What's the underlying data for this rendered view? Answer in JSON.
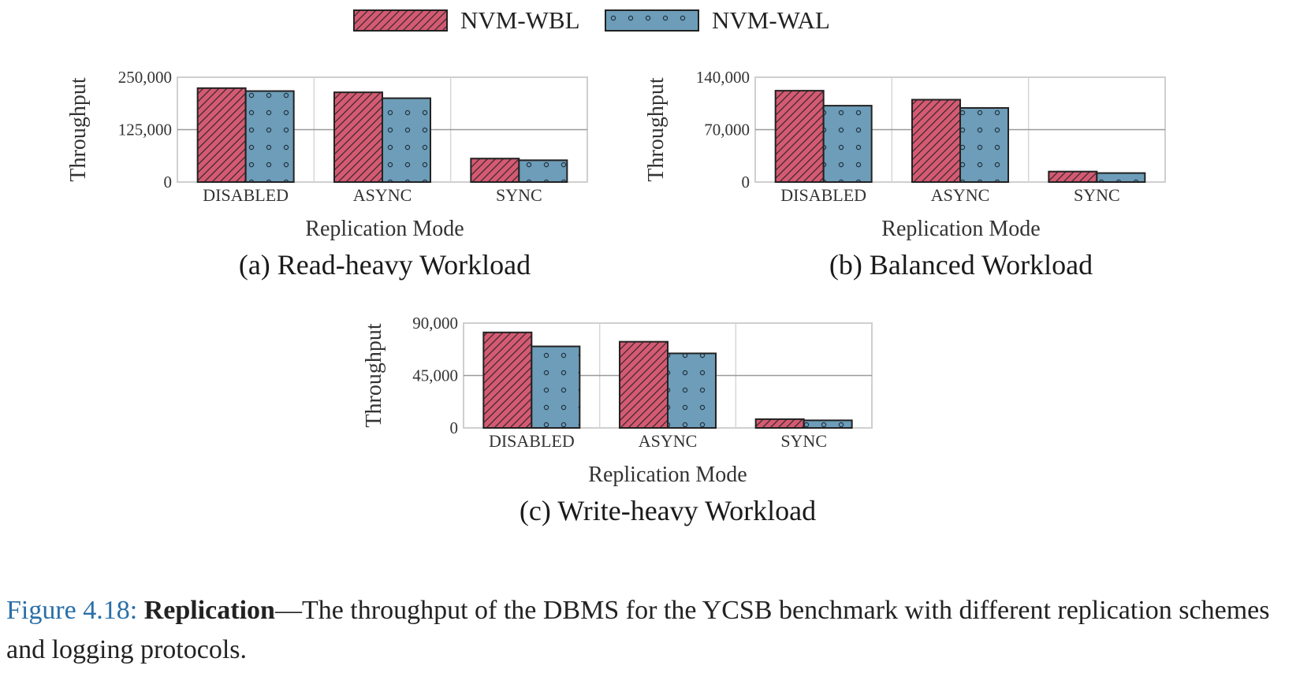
{
  "legend": [
    {
      "name": "NVM-WBL",
      "color": "#d45a72",
      "pattern": "hatch"
    },
    {
      "name": "NVM-WAL",
      "color": "#6d9db8",
      "pattern": "dots"
    }
  ],
  "chart_data": [
    {
      "type": "bar",
      "subtitle": "(a) Read-heavy Workload",
      "xlabel": "Replication Mode",
      "ylabel": "Throughput",
      "categories": [
        "DISABLED",
        "ASYNC",
        "SYNC"
      ],
      "yticks": [
        "0",
        "125,000",
        "250,000"
      ],
      "ytick_values": [
        0,
        125000,
        250000
      ],
      "ylim": [
        0,
        250000
      ],
      "grid": true,
      "series": [
        {
          "name": "NVM-WBL",
          "values": [
            224000,
            214000,
            56000
          ]
        },
        {
          "name": "NVM-WAL",
          "values": [
            217000,
            200000,
            52000
          ]
        }
      ]
    },
    {
      "type": "bar",
      "subtitle": "(b) Balanced Workload",
      "xlabel": "Replication Mode",
      "ylabel": "Throughput",
      "categories": [
        "DISABLED",
        "ASYNC",
        "SYNC"
      ],
      "yticks": [
        "0",
        "70,000",
        "140,000"
      ],
      "ytick_values": [
        0,
        70000,
        140000
      ],
      "ylim": [
        0,
        140000
      ],
      "grid": true,
      "series": [
        {
          "name": "NVM-WBL",
          "values": [
            122000,
            110000,
            14000
          ]
        },
        {
          "name": "NVM-WAL",
          "values": [
            102000,
            99000,
            12000
          ]
        }
      ]
    },
    {
      "type": "bar",
      "subtitle": "(c) Write-heavy Workload",
      "xlabel": "Replication Mode",
      "ylabel": "Throughput",
      "categories": [
        "DISABLED",
        "ASYNC",
        "SYNC"
      ],
      "yticks": [
        "0",
        "45,000",
        "90,000"
      ],
      "ytick_values": [
        0,
        45000,
        90000
      ],
      "ylim": [
        0,
        90000
      ],
      "grid": true,
      "series": [
        {
          "name": "NVM-WBL",
          "values": [
            82000,
            74000,
            7500
          ]
        },
        {
          "name": "NVM-WAL",
          "values": [
            70000,
            64000,
            6500
          ]
        }
      ]
    }
  ],
  "caption": {
    "number": "Figure 4.18:",
    "heading": "Replication",
    "text": "—The throughput of the DBMS for the YCSB benchmark with different replication schemes and logging protocols."
  }
}
